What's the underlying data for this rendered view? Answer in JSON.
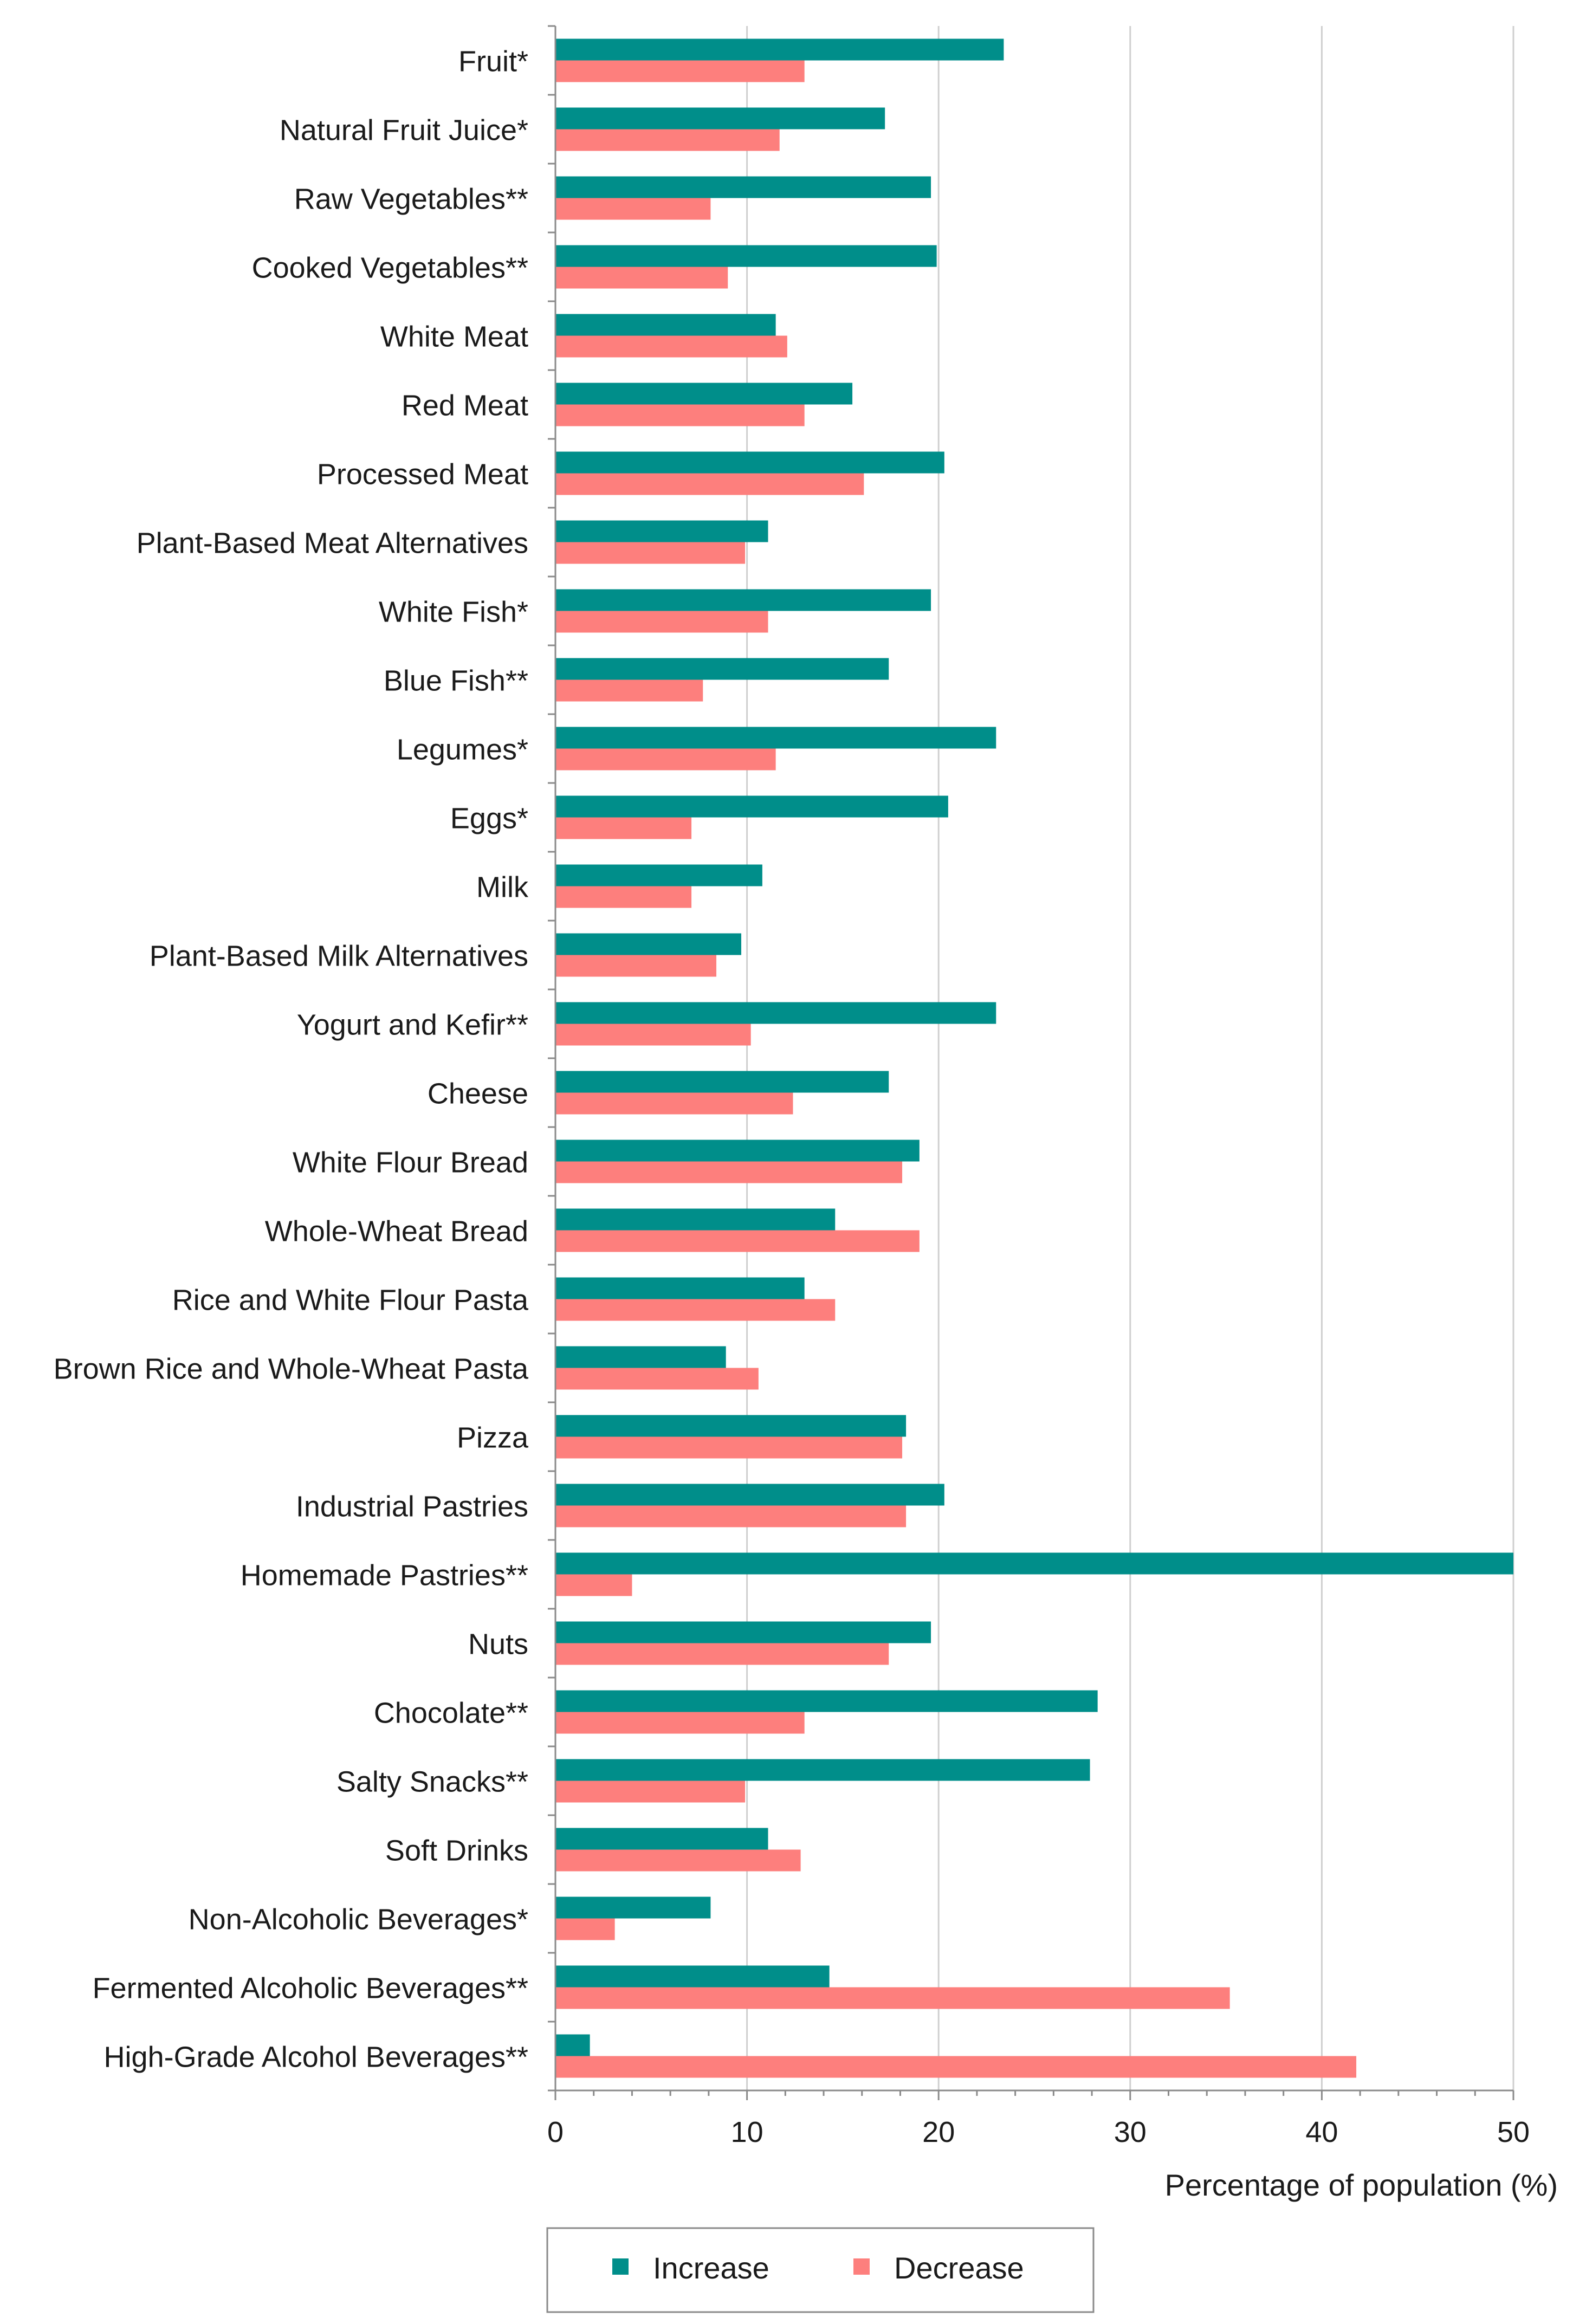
{
  "chart_data": {
    "type": "bar",
    "orientation": "horizontal",
    "title": "",
    "xlabel": "Percentage of population (%)",
    "ylabel": "",
    "xlim": [
      0,
      50
    ],
    "xticks": [
      "0",
      "10",
      "20",
      "30",
      "40",
      "50"
    ],
    "grid": true,
    "legend_position": "bottom-center",
    "categories": [
      "Fruit*",
      "Natural Fruit Juice*",
      "Raw Vegetables**",
      "Cooked Vegetables**",
      "White Meat",
      "Red Meat",
      "Processed Meat",
      "Plant-Based Meat Alternatives",
      "White Fish*",
      "Blue Fish**",
      "Legumes*",
      "Eggs*",
      "Milk",
      "Plant-Based Milk Alternatives",
      "Yogurt and Kefir**",
      "Cheese",
      "White Flour Bread",
      "Whole-Wheat Bread",
      "Rice and White Flour Pasta",
      "Brown Rice and Whole-Wheat Pasta",
      "Pizza",
      "Industrial Pastries",
      "Homemade Pastries**",
      "Nuts",
      "Chocolate**",
      "Salty Snacks**",
      "Soft Drinks",
      "Non-Alcoholic Beverages*",
      "Fermented Alcoholic Beverages**",
      "High-Grade Alcohol Beverages**"
    ],
    "series": [
      {
        "name": "Increase",
        "color": "#008e8a",
        "values": [
          23.4,
          17.2,
          19.6,
          19.9,
          11.5,
          15.5,
          20.3,
          11.1,
          19.6,
          17.4,
          23.0,
          20.5,
          10.8,
          9.7,
          23.0,
          17.4,
          19.0,
          14.6,
          13.0,
          8.9,
          18.3,
          20.3,
          50.0,
          19.6,
          28.3,
          27.9,
          11.1,
          8.1,
          14.3,
          1.8
        ]
      },
      {
        "name": "Decrease",
        "color": "#fd7f7d",
        "values": [
          13.0,
          11.7,
          8.1,
          9.0,
          12.1,
          13.0,
          16.1,
          9.9,
          11.1,
          7.7,
          11.5,
          7.1,
          7.1,
          8.4,
          10.2,
          12.4,
          18.1,
          19.0,
          14.6,
          10.6,
          18.1,
          18.3,
          4.0,
          17.4,
          13.0,
          9.9,
          12.8,
          3.1,
          35.2,
          41.8
        ]
      }
    ]
  }
}
